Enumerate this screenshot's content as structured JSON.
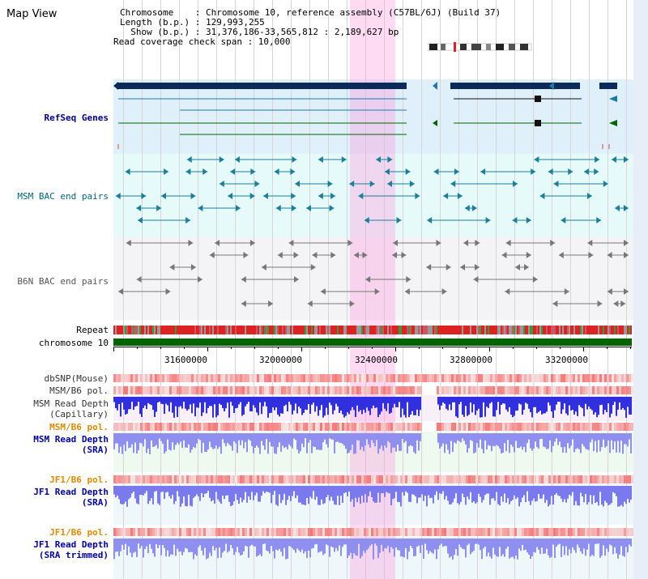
{
  "title": "Map View",
  "header": {
    "line1": "Chromosome    : Chromosome 10, reference assembly (C57BL/6J) (Build 37)",
    "line2": "Length (b.p.) : 129,993,255",
    "line3": "  Show (b.p.) : 31,376,186-33,565,812 : 2,189,627 bp",
    "line4": "Read coverage check span : 10,000"
  },
  "tracks": {
    "refseq": "RefSeq Genes",
    "msm_bac": "MSM BAC end pairs",
    "b6n_bac": "B6N BAC end pairs",
    "repeat": "Repeat",
    "chromosome": "chromosome 10",
    "dbsnp": "dbSNP(Mouse)",
    "msm_b6_pol_1": "MSM/B6 pol.",
    "msm_read_depth_cap_1": "MSM Read Depth",
    "msm_read_depth_cap_2": "(Capillary)",
    "msm_b6_pol_2": "MSM/B6 pol.",
    "msm_read_depth_sra_1": "MSM Read Depth",
    "msm_read_depth_sra_2": "(SRA)",
    "jf1_b6_pol_1": "JF1/B6 pol.",
    "jf1_read_depth_sra_1": "JF1 Read Depth",
    "jf1_read_depth_sra_2": "(SRA)",
    "jf1_b6_pol_2": "JF1/B6 pol.",
    "jf1_read_depth_trim_1": "JF1 Read Depth",
    "jf1_read_depth_trim_2": "(SRA trimmed)"
  },
  "axis_ticks": [
    "31600000",
    "32000000",
    "32400000",
    "32800000",
    "33200000"
  ],
  "colors": {
    "refseq_label": "#00008b",
    "msm_bac_label": "#006680",
    "b6n_bac_label": "#555555",
    "orange_label": "#e08a00",
    "blue_label": "#0000aa",
    "chromosome_bar": "#006400",
    "highlight": "#ff96dc"
  }
}
